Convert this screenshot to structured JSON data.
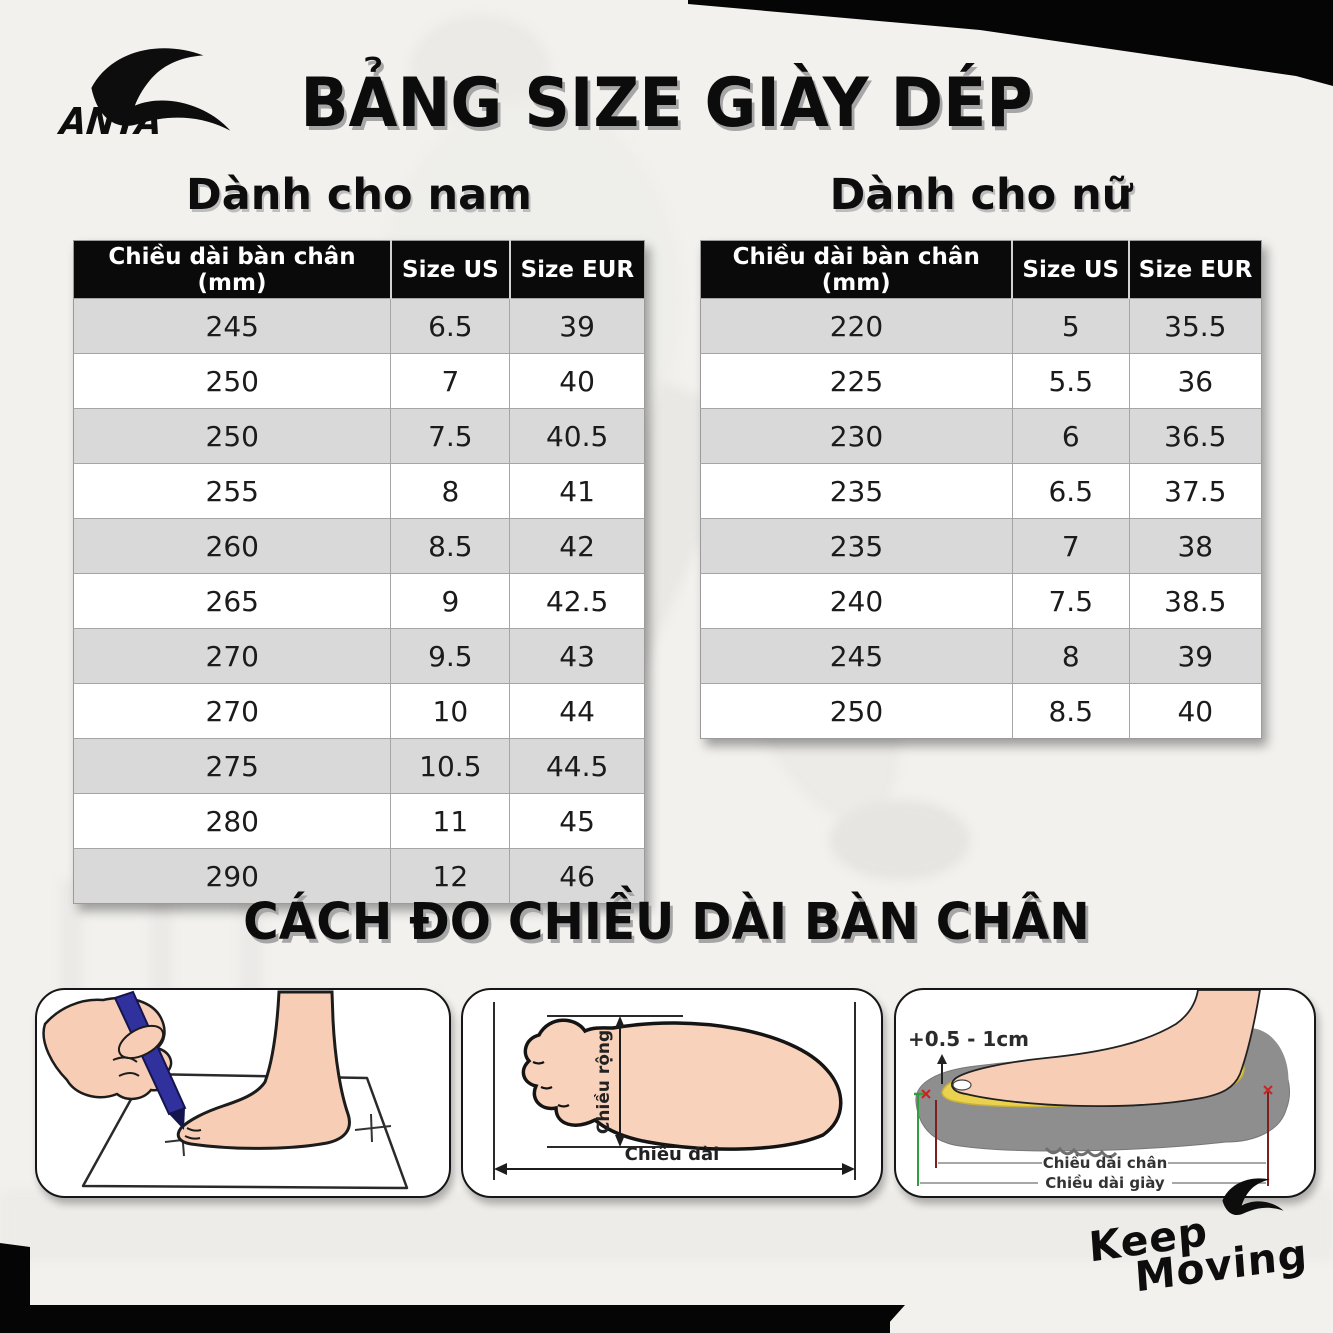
{
  "brand": {
    "name": "ANTA"
  },
  "title": "BẢNG SIZE GIÀY DÉP",
  "tables": {
    "men": {
      "heading": "Dành cho nam",
      "columns": [
        "Chiều dài bàn chân (mm)",
        "Size US",
        "Size EUR"
      ],
      "rows": [
        [
          "245",
          "6.5",
          "39"
        ],
        [
          "250",
          "7",
          "40"
        ],
        [
          "250",
          "7.5",
          "40.5"
        ],
        [
          "255",
          "8",
          "41"
        ],
        [
          "260",
          "8.5",
          "42"
        ],
        [
          "265",
          "9",
          "42.5"
        ],
        [
          "270",
          "9.5",
          "43"
        ],
        [
          "270",
          "10",
          "44"
        ],
        [
          "275",
          "10.5",
          "44.5"
        ],
        [
          "280",
          "11",
          "45"
        ],
        [
          "290",
          "12",
          "46"
        ]
      ]
    },
    "women": {
      "heading": "Dành cho nữ",
      "columns": [
        "Chiều dài bàn chân (mm)",
        "Size US",
        "Size EUR"
      ],
      "rows": [
        [
          "220",
          "5",
          "35.5"
        ],
        [
          "225",
          "5.5",
          "36"
        ],
        [
          "230",
          "6",
          "36.5"
        ],
        [
          "235",
          "6.5",
          "37.5"
        ],
        [
          "235",
          "7",
          "38"
        ],
        [
          "240",
          "7.5",
          "38.5"
        ],
        [
          "245",
          "8",
          "39"
        ],
        [
          "250",
          "8.5",
          "40"
        ]
      ]
    }
  },
  "measure": {
    "heading": "CÁCH ĐO CHIỀU DÀI BÀN CHÂN",
    "dimensions_panel": {
      "width_label": "Chiều rộng",
      "length_label": "Chiều dài"
    },
    "shoe_panel": {
      "allowance_label": "+0.5 - 1cm",
      "foot_length_label": "Chiều dài chân",
      "shoe_length_label": "Chiều dài giày"
    }
  },
  "footer": {
    "tagline_line1": "Keep",
    "tagline_line2": "Moving"
  },
  "colors": {
    "header_bg": "#0a0a0a",
    "row_alt_gray": "#d9d9d9",
    "skin": "#f7ceb5",
    "pen_blue": "#31319e",
    "shoe_gray": "#8e8e8e",
    "insole_yellow": "#ead24e",
    "measure_red": "#7d1f1f",
    "measure_green": "#2f9e3f"
  }
}
